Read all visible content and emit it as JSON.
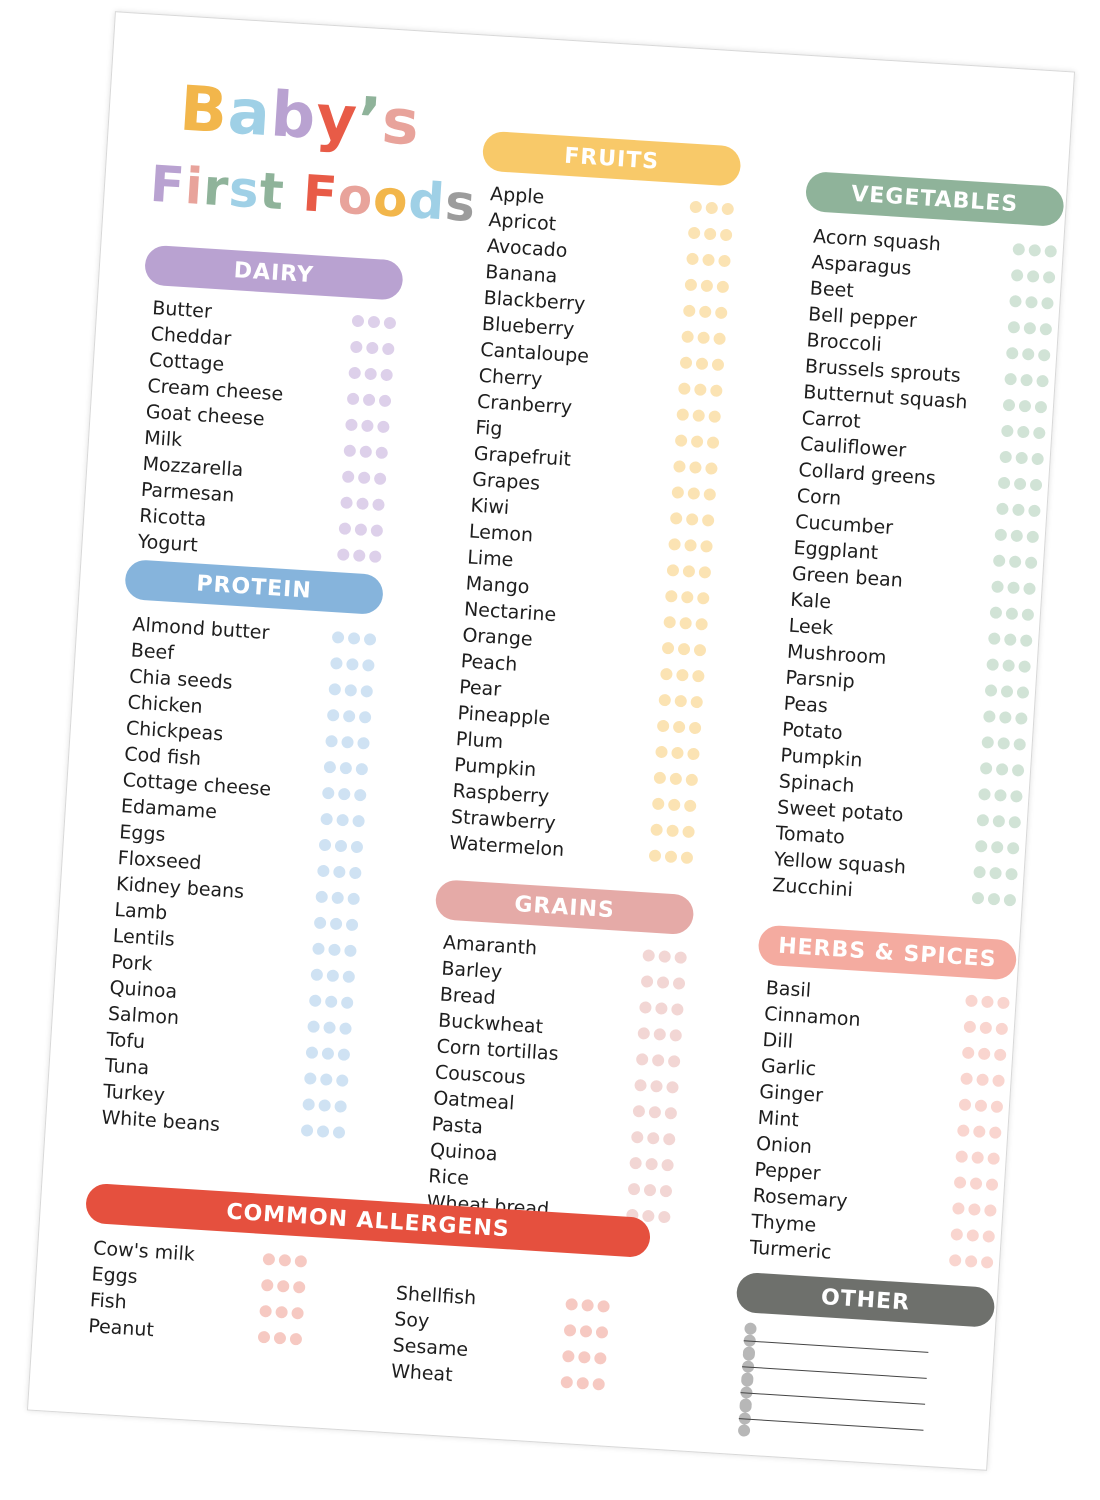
{
  "title": {
    "line1": [
      {
        "ch": "B",
        "color": "#f2b64b"
      },
      {
        "ch": "a",
        "color": "#9fd0e6"
      },
      {
        "ch": "b",
        "color": "#b9a2d1"
      },
      {
        "ch": "y",
        "color": "#e85b47"
      },
      {
        "ch": "’",
        "color": "#8fb39a"
      },
      {
        "ch": "s",
        "color": "#e8a39b"
      }
    ],
    "line2": [
      {
        "ch": "F",
        "color": "#b9a2d1"
      },
      {
        "ch": "i",
        "color": "#e8a39b"
      },
      {
        "ch": "r",
        "color": "#8fb39a"
      },
      {
        "ch": "s",
        "color": "#9fd0e6"
      },
      {
        "ch": "t",
        "color": "#8fb39a"
      },
      {
        "ch": " ",
        "color": "#ffffff"
      },
      {
        "ch": "F",
        "color": "#e85b47"
      },
      {
        "ch": "o",
        "color": "#e8a39b"
      },
      {
        "ch": "o",
        "color": "#f2b64b"
      },
      {
        "ch": "d",
        "color": "#9fd0e6"
      },
      {
        "ch": "s",
        "color": "#9c9c9c"
      }
    ]
  },
  "sections": {
    "dairy": {
      "label": "DAIRY",
      "color": "#b9a2d1",
      "dot_color": "#ddd0ea",
      "items": [
        "Butter",
        "Cheddar",
        "Cottage",
        "Cream cheese",
        "Goat cheese",
        "Milk",
        "Mozzarella",
        "Parmesan",
        "Ricotta",
        "Yogurt"
      ]
    },
    "protein": {
      "label": "PROTEIN",
      "color": "#86b4dc",
      "dot_color": "#cfe2f3",
      "items": [
        "Almond butter",
        "Beef",
        "Chia seeds",
        "Chicken",
        "Chickpeas",
        "Cod fish",
        "Cottage cheese",
        "Edamame",
        "Eggs",
        "Floxseed",
        "Kidney beans",
        "Lamb",
        "Lentils",
        "Pork",
        "Quinoa",
        "Salmon",
        "Tofu",
        "Tuna",
        "Turkey",
        "White beans"
      ]
    },
    "fruits": {
      "label": "FRUITS",
      "color": "#f8c969",
      "dot_color": "#fbe3b3",
      "items": [
        "Apple",
        "Apricot",
        "Avocado",
        "Banana",
        "Blackberry",
        "Blueberry",
        "Cantaloupe",
        "Cherry",
        "Cranberry",
        "Fig",
        "Grapefruit",
        "Grapes",
        "Kiwi",
        "Lemon",
        "Lime",
        "Mango",
        "Nectarine",
        "Orange",
        "Peach",
        "Pear",
        "Pineapple",
        "Plum",
        "Pumpkin",
        "Raspberry",
        "Strawberry",
        "Watermelon"
      ]
    },
    "grains": {
      "label": "GRAINS",
      "color": "#e5aaa7",
      "dot_color": "#f2d6d4",
      "items": [
        "Amaranth",
        "Barley",
        "Bread",
        "Buckwheat",
        "Corn tortillas",
        "Couscous",
        "Oatmeal",
        "Pasta",
        "Quinoa",
        "Rice",
        "Wheat bread"
      ]
    },
    "vegetables": {
      "label": "VEGETABLES",
      "color": "#8fb39a",
      "dot_color": "#d1e3d6",
      "items": [
        "Acorn squash",
        "Asparagus",
        "Beet",
        "Bell pepper",
        "Broccoli",
        "Brussels sprouts",
        "Butternut squash",
        "Carrot",
        "Cauliflower",
        "Collard greens",
        "Corn",
        "Cucumber",
        "Eggplant",
        "Green bean",
        "Kale",
        "Leek",
        "Mushroom",
        "Parsnip",
        "Peas",
        "Potato",
        "Pumpkin",
        "Spinach",
        "Sweet potato",
        "Tomato",
        "Yellow squash",
        "Zucchini"
      ]
    },
    "herbs": {
      "label": "HERBS & SPICES",
      "color": "#f4aba0",
      "dot_color": "#f9d5cf",
      "items": [
        "Basil",
        "Cinnamon",
        "Dill",
        "Garlic",
        "Ginger",
        "Mint",
        "Onion",
        "Pepper",
        "Rosemary",
        "Thyme",
        "Turmeric"
      ]
    },
    "allergens": {
      "label": "COMMON ALLERGENS",
      "color": "#e5503e",
      "dot_color": "#f6c9c2",
      "col1": [
        "Cow's milk",
        "Eggs",
        "Fish",
        "Peanut"
      ],
      "col2": [
        "Shellfish",
        "Soy",
        "Sesame",
        "Wheat"
      ]
    },
    "other": {
      "label": "OTHER",
      "color": "#6e706c",
      "dot_color": "#b7b7b7",
      "blank_lines": 4
    }
  }
}
